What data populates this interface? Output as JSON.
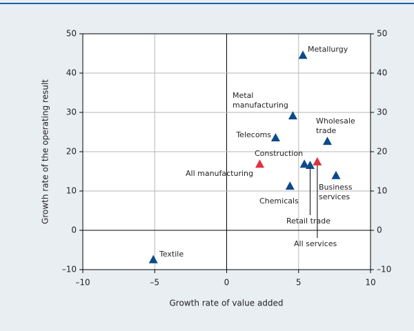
{
  "chart_data": {
    "type": "scatter",
    "x_label": "Growth rate of value added",
    "y_label": "Growth rate of the operating result",
    "xlim": [
      -10,
      10
    ],
    "xticks": [
      {
        "value": -10,
        "label": "–10"
      },
      {
        "value": -5,
        "label": "–5"
      },
      0,
      5,
      10
    ],
    "ylim": [
      -10,
      50
    ],
    "yticks": [
      {
        "value": -10,
        "label": "–10"
      },
      0,
      10,
      20,
      30,
      40,
      50
    ],
    "right_axis": true,
    "grid": true,
    "zero_lines": true,
    "series": [
      {
        "color": "#0b4a8c",
        "x": [
          5.3,
          4.6,
          3.4,
          7.0,
          5.4,
          5.8,
          4.4,
          7.6,
          -5.1
        ],
        "y": [
          44.5,
          29.1,
          23.5,
          22.6,
          16.8,
          16.5,
          11.2,
          13.9,
          -7.5
        ],
        "labels": [
          [
            "Metallurgy"
          ],
          [
            "Metal",
            "manufacturing"
          ],
          [
            "Telecoms"
          ],
          [
            "Wholesale",
            "trade"
          ],
          [
            "Construction"
          ],
          [
            "Retail trade"
          ],
          [
            "Chemicals"
          ],
          [
            "Business",
            "services"
          ],
          [
            "Textile"
          ]
        ]
      },
      {
        "color": "#e0323f",
        "x": [
          2.3,
          6.3
        ],
        "y": [
          16.8,
          17.4
        ],
        "labels": [
          [
            "All manufacturing"
          ],
          [
            "All services"
          ]
        ]
      }
    ]
  }
}
